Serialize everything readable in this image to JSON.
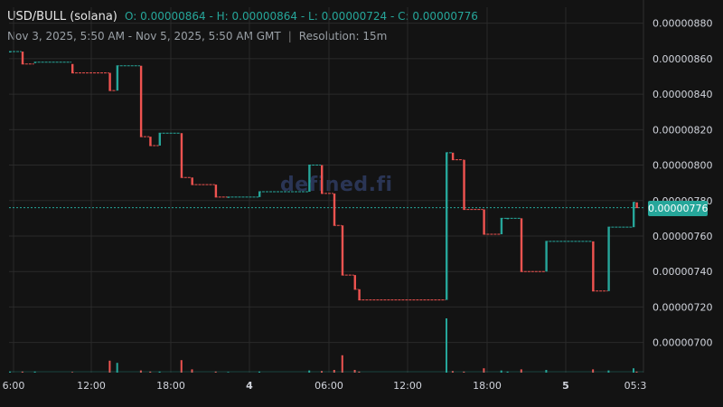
{
  "header": {
    "pair": "USD/BULL (solana)",
    "o_label": "O:",
    "o_value": "0.00000864",
    "h_label": "H:",
    "h_value": "0.00000864",
    "l_label": "L:",
    "l_value": "0.00000724",
    "c_label": "C:",
    "c_value": "0.00000776",
    "range": "Nov 3, 2025, 5:50 AM - Nov 5, 2025, 5:50 AM GMT",
    "separator": "|",
    "resolution": "Resolution: 15m"
  },
  "watermark": "defined.fi",
  "last_price_label": "0.00000776",
  "colors": {
    "up": "#26a69a",
    "down": "#ef5350",
    "grid": "#2a2a2a",
    "bg": "#131313"
  },
  "chart_data": {
    "type": "candlestick",
    "ylim": [
      6.83e-06,
      8.89e-06
    ],
    "y_ticks": [
      "0.00000880",
      "0.00000860",
      "0.00000840",
      "0.00000820",
      "0.00000800",
      "0.00000780",
      "0.00000760",
      "0.00000740",
      "0.00000720",
      "0.00000700"
    ],
    "x_ticks": [
      "6:00",
      "12:00",
      "18:00",
      "4",
      "06:00",
      "12:00",
      "18:00",
      "5",
      "05:3"
    ],
    "last_price": 7.76e-06,
    "segments": [
      {
        "x0": 0.0,
        "x1": 0.02,
        "o": 8.64e-06,
        "c": 8.64e-06,
        "v": 0.02
      },
      {
        "x0": 0.02,
        "x1": 0.04,
        "o": 8.64e-06,
        "c": 8.57e-06,
        "v": 0.02
      },
      {
        "x0": 0.04,
        "x1": 0.1,
        "o": 8.58e-06,
        "c": 8.58e-06,
        "v": 0.02
      },
      {
        "x0": 0.1,
        "x1": 0.16,
        "o": 8.57e-06,
        "c": 8.52e-06,
        "v": 0.01
      },
      {
        "x0": 0.16,
        "x1": 0.172,
        "o": 8.52e-06,
        "c": 8.42e-06,
        "v": 0.22
      },
      {
        "x0": 0.172,
        "x1": 0.21,
        "o": 8.42e-06,
        "c": 8.56e-06,
        "v": 0.18
      },
      {
        "x0": 0.21,
        "x1": 0.225,
        "o": 8.56e-06,
        "c": 8.16e-06,
        "v": 0.04
      },
      {
        "x0": 0.225,
        "x1": 0.24,
        "o": 8.16e-06,
        "c": 8.11e-06,
        "v": 0.02
      },
      {
        "x0": 0.24,
        "x1": 0.275,
        "o": 8.11e-06,
        "c": 8.18e-06,
        "v": 0.02
      },
      {
        "x0": 0.275,
        "x1": 0.292,
        "o": 8.18e-06,
        "c": 7.93e-06,
        "v": 0.23
      },
      {
        "x0": 0.292,
        "x1": 0.33,
        "o": 7.93e-06,
        "c": 7.89e-06,
        "v": 0.06
      },
      {
        "x0": 0.33,
        "x1": 0.35,
        "o": 7.89e-06,
        "c": 7.82e-06,
        "v": 0.02
      },
      {
        "x0": 0.35,
        "x1": 0.4,
        "o": 7.82e-06,
        "c": 7.82e-06,
        "v": 0.01
      },
      {
        "x0": 0.4,
        "x1": 0.48,
        "o": 7.82e-06,
        "c": 7.85e-06,
        "v": 0.02
      },
      {
        "x0": 0.48,
        "x1": 0.5,
        "o": 7.85e-06,
        "c": 8e-06,
        "v": 0.04
      },
      {
        "x0": 0.5,
        "x1": 0.52,
        "o": 8e-06,
        "c": 7.84e-06,
        "v": 0.03
      },
      {
        "x0": 0.52,
        "x1": 0.533,
        "o": 7.84e-06,
        "c": 7.66e-06,
        "v": 0.05
      },
      {
        "x0": 0.533,
        "x1": 0.553,
        "o": 7.66e-06,
        "c": 7.38e-06,
        "v": 0.32
      },
      {
        "x0": 0.553,
        "x1": 0.56,
        "o": 7.38e-06,
        "c": 7.3e-06,
        "v": 0.05
      },
      {
        "x0": 0.56,
        "x1": 0.7,
        "o": 7.3e-06,
        "c": 7.24e-06,
        "v": 0.02
      },
      {
        "x0": 0.7,
        "x1": 0.71,
        "o": 7.24e-06,
        "c": 8.07e-06,
        "v": 1.0
      },
      {
        "x0": 0.71,
        "x1": 0.728,
        "o": 8.07e-06,
        "c": 8.03e-06,
        "v": 0.03
      },
      {
        "x0": 0.728,
        "x1": 0.76,
        "o": 8.03e-06,
        "c": 7.75e-06,
        "v": 0.02
      },
      {
        "x0": 0.76,
        "x1": 0.788,
        "o": 7.75e-06,
        "c": 7.61e-06,
        "v": 0.08
      },
      {
        "x0": 0.788,
        "x1": 0.798,
        "o": 7.61e-06,
        "c": 7.7e-06,
        "v": 0.04
      },
      {
        "x0": 0.798,
        "x1": 0.82,
        "o": 7.7e-06,
        "c": 7.7e-06,
        "v": 0.02
      },
      {
        "x0": 0.82,
        "x1": 0.86,
        "o": 7.7e-06,
        "c": 7.4e-06,
        "v": 0.06
      },
      {
        "x0": 0.86,
        "x1": 0.935,
        "o": 7.4e-06,
        "c": 7.57e-06,
        "v": 0.05
      },
      {
        "x0": 0.935,
        "x1": 0.96,
        "o": 7.57e-06,
        "c": 7.29e-06,
        "v": 0.06
      },
      {
        "x0": 0.96,
        "x1": 1.0,
        "o": 7.29e-06,
        "c": 7.65e-06,
        "v": 0.04
      },
      {
        "x0": 1.0,
        "x1": 1.005,
        "o": 7.65e-06,
        "c": 7.79e-06,
        "v": 0.08
      },
      {
        "x0": 1.005,
        "x1": 1.01,
        "o": 7.79e-06,
        "c": 7.76e-06,
        "v": 0.02
      }
    ]
  }
}
